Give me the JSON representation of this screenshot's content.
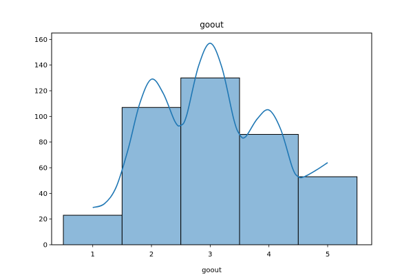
{
  "chart_data": {
    "type": "bar",
    "title": "goout",
    "xlabel": "goout",
    "ylabel": "",
    "categories": [
      "1",
      "2",
      "3",
      "4",
      "5"
    ],
    "values": [
      23,
      107,
      130,
      86,
      53
    ],
    "xlim": [
      0.3,
      5.75
    ],
    "ylim": [
      0,
      165
    ],
    "x_ticks": [
      "1",
      "2",
      "3",
      "4",
      "5"
    ],
    "y_ticks": [
      "0",
      "20",
      "40",
      "60",
      "80",
      "100",
      "120",
      "140",
      "160"
    ],
    "kde": {
      "x": [
        1.0,
        1.2,
        1.4,
        1.6,
        1.8,
        2.0,
        2.2,
        2.4,
        2.5,
        2.6,
        2.8,
        3.0,
        3.2,
        3.4,
        3.5,
        3.6,
        3.8,
        4.0,
        4.2,
        4.4,
        4.5,
        4.6,
        4.8,
        5.0
      ],
      "y": [
        29,
        32,
        45,
        74,
        110,
        129,
        118,
        96,
        93,
        101,
        139,
        157,
        138,
        98,
        86,
        84,
        98,
        105,
        90,
        60,
        53,
        53,
        58,
        64
      ]
    },
    "grid": false,
    "colors": {
      "bar_fill": "#8db9da",
      "bar_edge": "#000000",
      "line": "#1f77b4"
    }
  }
}
